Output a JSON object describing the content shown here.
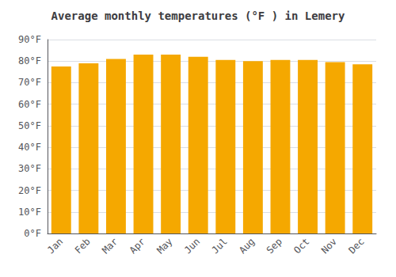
{
  "chart_data": {
    "type": "bar",
    "title": "Average monthly temperatures (°F ) in Lemery",
    "categories": [
      "Jan",
      "Feb",
      "Mar",
      "Apr",
      "May",
      "Jun",
      "Jul",
      "Aug",
      "Sep",
      "Oct",
      "Nov",
      "Dec"
    ],
    "values": [
      77.5,
      79.0,
      81.0,
      83.0,
      83.0,
      82.0,
      80.5,
      80.0,
      80.5,
      80.5,
      79.5,
      78.5
    ],
    "color": "#F5A800",
    "ylim": [
      0,
      90
    ],
    "yticks": [
      {
        "value": 0,
        "label": "0°F"
      },
      {
        "value": 10,
        "label": "10°F"
      },
      {
        "value": 20,
        "label": "20°F"
      },
      {
        "value": 30,
        "label": "30°F"
      },
      {
        "value": 40,
        "label": "40°F"
      },
      {
        "value": 50,
        "label": "50°F"
      },
      {
        "value": 60,
        "label": "60°F"
      },
      {
        "value": 70,
        "label": "70°F"
      },
      {
        "value": 80,
        "label": "80°F"
      },
      {
        "value": 90,
        "label": "90°F"
      }
    ],
    "grid": true
  }
}
